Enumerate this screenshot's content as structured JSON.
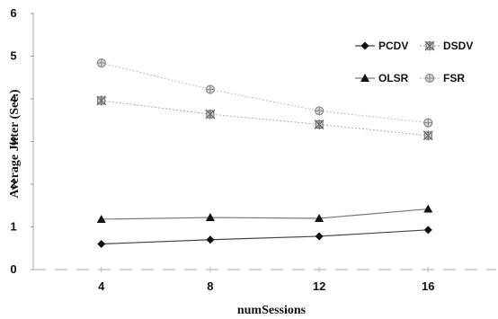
{
  "chart_data": {
    "type": "line",
    "title": "",
    "xlabel": "numSessions",
    "ylabel": "Average Jitter (Sec.)",
    "x": [
      4,
      8,
      12,
      16
    ],
    "x_ticks": [
      "4",
      "8",
      "12",
      "16"
    ],
    "y_ticks": [
      "0",
      "1",
      "2",
      "3",
      "4",
      "5",
      "6"
    ],
    "xlim": [
      1.5,
      18.5
    ],
    "ylim": [
      0,
      6
    ],
    "grid": false,
    "legend_position": "top-right",
    "series": [
      {
        "name": "PCDV",
        "values": [
          0.6,
          0.7,
          0.78,
          0.93
        ],
        "marker": "diamond",
        "color": "#111111",
        "line": "#444444"
      },
      {
        "name": "DSDV",
        "values": [
          3.96,
          3.64,
          3.4,
          3.14
        ],
        "marker": "asterisk-square",
        "color": "#6b6b6b",
        "line": "#a8a8a8"
      },
      {
        "name": "OLSR",
        "values": [
          1.18,
          1.22,
          1.2,
          1.42
        ],
        "marker": "triangle",
        "color": "#111111",
        "line": "#777777"
      },
      {
        "name": "FSR",
        "values": [
          4.84,
          4.22,
          3.72,
          3.44
        ],
        "marker": "circle-cross",
        "color": "#8a8a8a",
        "line": "#bcbcbc"
      }
    ]
  }
}
